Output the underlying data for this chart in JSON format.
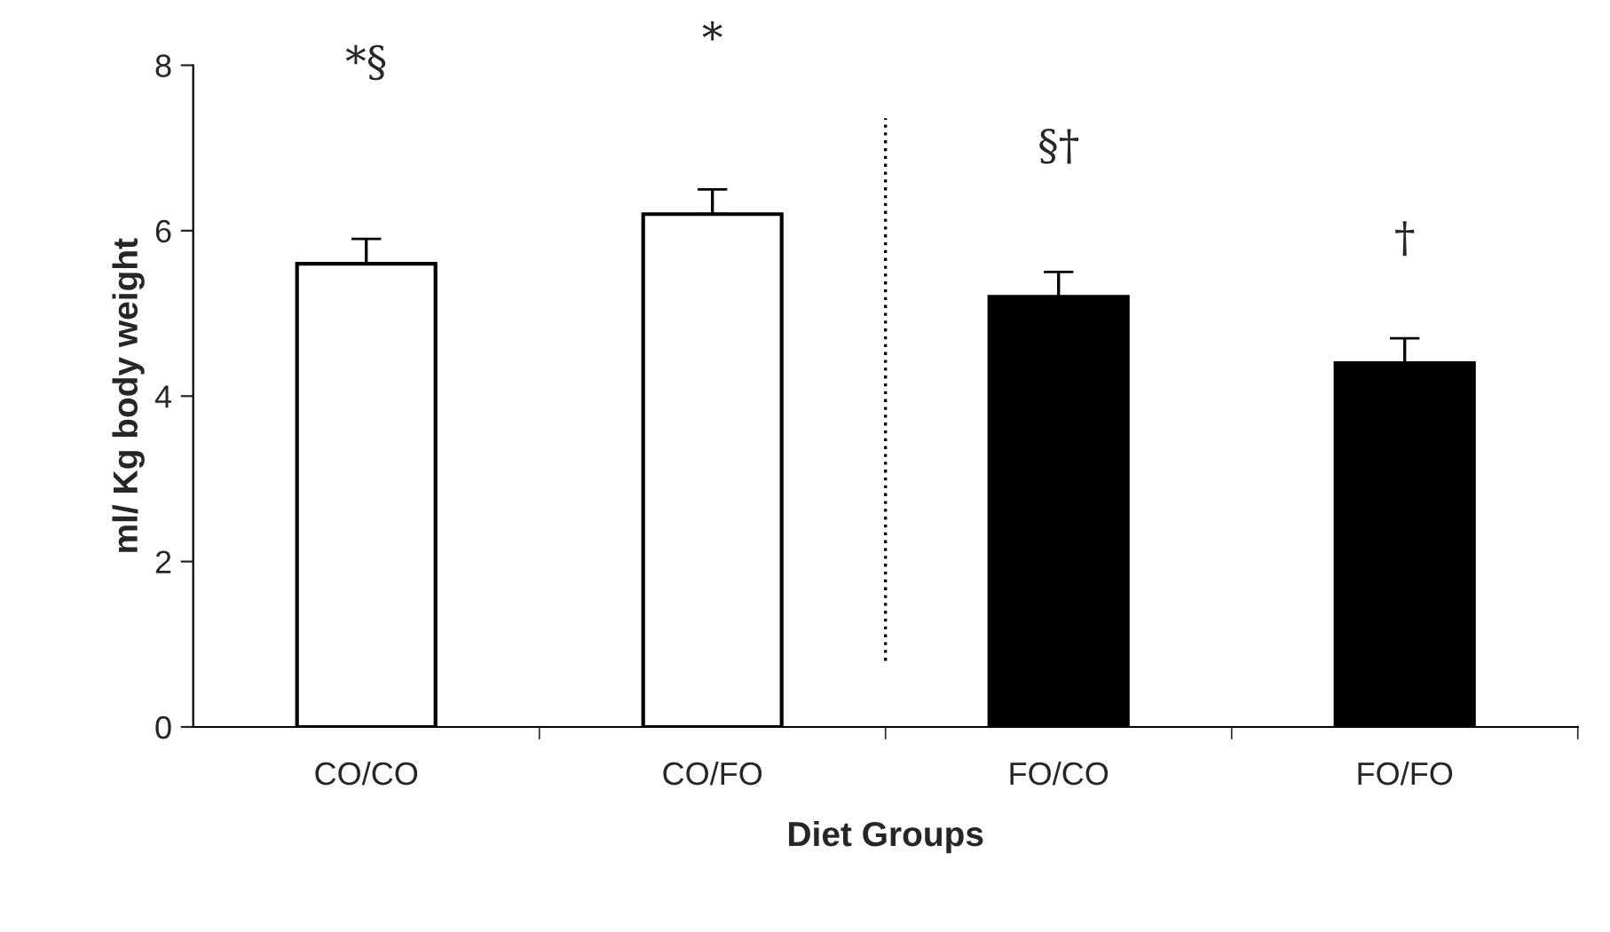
{
  "chart_data": {
    "type": "bar",
    "xlabel": "Diet Groups",
    "ylabel": "ml/ Kg body weight",
    "categories": [
      "CO/CO",
      "CO/FO",
      "FO/CO",
      "FO/FO"
    ],
    "values": [
      5.6,
      6.2,
      5.2,
      4.4
    ],
    "errors": [
      0.3,
      0.3,
      0.3,
      0.3
    ],
    "colors": [
      "#ffffff",
      "#ffffff",
      "#000000",
      "#000000"
    ],
    "ylim": [
      0,
      8
    ],
    "yticks": [
      0,
      2,
      4,
      6,
      8
    ],
    "grid": false,
    "legend": false,
    "annotations": [
      "*§",
      "*",
      "§†",
      "†"
    ]
  }
}
